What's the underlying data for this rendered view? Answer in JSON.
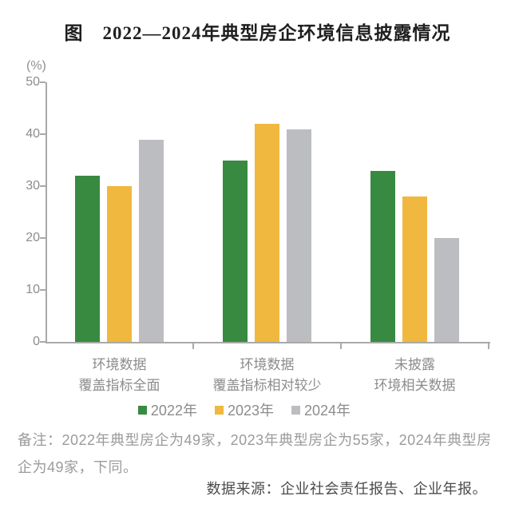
{
  "title": "图　2022—2024年典型房企环境信息披露情况",
  "chart_data": {
    "type": "bar",
    "title": "图 2022—2024年典型房企环境信息披露情况",
    "unit_label": "(%)",
    "categories": [
      [
        "环境数据",
        "覆盖指标全面"
      ],
      [
        "环境数据",
        "覆盖指标相对较少"
      ],
      [
        "未披露",
        "环境相关数据"
      ]
    ],
    "series": [
      {
        "name": "2022年",
        "color": "#388A40",
        "values": [
          32,
          35,
          33
        ]
      },
      {
        "name": "2023年",
        "color": "#F0B83E",
        "values": [
          30,
          42,
          28
        ]
      },
      {
        "name": "2024年",
        "color": "#BBBDC1",
        "values": [
          39,
          41,
          20
        ]
      }
    ],
    "ylim": [
      0,
      50
    ],
    "yticks": [
      0,
      10,
      20,
      30,
      40,
      50
    ],
    "grid": false,
    "legend_position": "bottom"
  },
  "note": "备注：2022年典型房企为49家，2023年典型房企为55家，2024年典型房企为49家，下同。",
  "source": "数据来源：企业社会责任报告、企业年报。",
  "colors": {
    "axis": "#a9a9a9",
    "tick_text": "#8c8c8c",
    "note_text": "#9b9b9b",
    "source_text": "#4b4b4b",
    "title_text": "#1f1f1f"
  }
}
